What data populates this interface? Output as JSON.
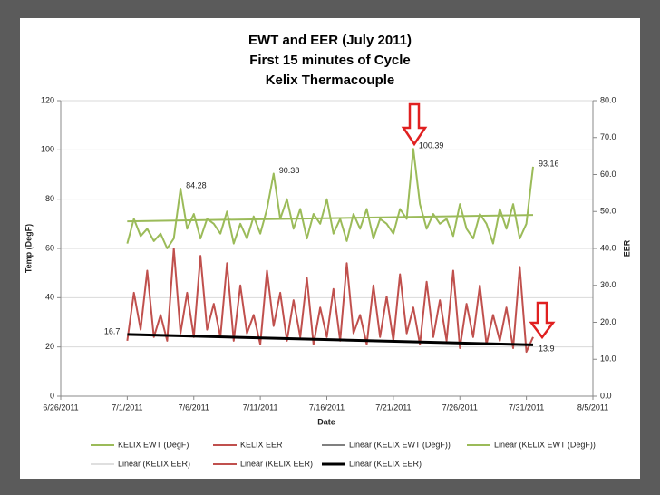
{
  "chart_data": {
    "type": "line",
    "title": [
      "EWT and EER (July 2011)",
      "First 15 minutes of Cycle",
      "Kelix Thermacouple"
    ],
    "xlabel": "Date",
    "ylabel": "Temp (DegF)",
    "y2label": "EER",
    "xlim": [
      "2011-06-26T00:00",
      "2011-08-05T00:00"
    ],
    "xticks": [
      {
        "value": "2011-06-26T00:00",
        "label": "6/26/2011"
      },
      {
        "value": "2011-07-01T00:00",
        "label": "7/1/2011"
      },
      {
        "value": "2011-07-06T00:00",
        "label": "7/6/2011"
      },
      {
        "value": "2011-07-11T00:00",
        "label": "7/11/2011"
      },
      {
        "value": "2011-07-16T00:00",
        "label": "7/16/2011"
      },
      {
        "value": "2011-07-21T00:00",
        "label": "7/21/2011"
      },
      {
        "value": "2011-07-26T00:00",
        "label": "7/26/2011"
      },
      {
        "value": "2011-07-31T00:00",
        "label": "7/31/2011"
      },
      {
        "value": "2011-08-05T00:00",
        "label": "8/5/2011"
      }
    ],
    "ylim": [
      0,
      120
    ],
    "yticks": [
      0,
      20,
      40,
      60,
      80,
      100,
      120
    ],
    "y2lim": [
      0,
      80
    ],
    "y2ticks": [
      {
        "value": 0,
        "label": "0.0"
      },
      {
        "value": 10,
        "label": "10.0"
      },
      {
        "value": 20,
        "label": "20.0"
      },
      {
        "value": 30,
        "label": "30.0"
      },
      {
        "value": 40,
        "label": "40.0"
      },
      {
        "value": 50,
        "label": "50.0"
      },
      {
        "value": 60,
        "label": "60.0"
      },
      {
        "value": 70,
        "label": "70.0"
      },
      {
        "value": 80,
        "label": "80.0"
      }
    ],
    "grid": true,
    "legend": "bottom",
    "x": [
      "2011-07-01T00:00",
      "2011-07-01T12:00",
      "2011-07-02T00:00",
      "2011-07-02T12:00",
      "2011-07-03T00:00",
      "2011-07-03T12:00",
      "2011-07-04T00:00",
      "2011-07-04T12:00",
      "2011-07-05T00:00",
      "2011-07-05T12:00",
      "2011-07-06T00:00",
      "2011-07-06T12:00",
      "2011-07-07T00:00",
      "2011-07-07T12:00",
      "2011-07-08T00:00",
      "2011-07-08T12:00",
      "2011-07-09T00:00",
      "2011-07-09T12:00",
      "2011-07-10T00:00",
      "2011-07-10T12:00",
      "2011-07-11T00:00",
      "2011-07-11T12:00",
      "2011-07-12T00:00",
      "2011-07-12T12:00",
      "2011-07-13T00:00",
      "2011-07-13T12:00",
      "2011-07-14T00:00",
      "2011-07-14T12:00",
      "2011-07-15T00:00",
      "2011-07-15T12:00",
      "2011-07-16T00:00",
      "2011-07-16T12:00",
      "2011-07-17T00:00",
      "2011-07-17T12:00",
      "2011-07-18T00:00",
      "2011-07-18T12:00",
      "2011-07-19T00:00",
      "2011-07-19T12:00",
      "2011-07-20T00:00",
      "2011-07-20T12:00",
      "2011-07-21T00:00",
      "2011-07-21T12:00",
      "2011-07-22T00:00",
      "2011-07-22T12:00",
      "2011-07-23T00:00",
      "2011-07-23T12:00",
      "2011-07-24T00:00",
      "2011-07-24T12:00",
      "2011-07-25T00:00",
      "2011-07-25T12:00",
      "2011-07-26T00:00",
      "2011-07-26T12:00",
      "2011-07-27T00:00",
      "2011-07-27T12:00",
      "2011-07-28T00:00",
      "2011-07-28T12:00",
      "2011-07-29T00:00",
      "2011-07-29T12:00",
      "2011-07-30T00:00",
      "2011-07-30T12:00",
      "2011-07-31T00:00",
      "2011-07-31T12:00"
    ],
    "series": [
      {
        "name": "KELIX EWT (DegF)",
        "color": "#9bbb59",
        "width": 2,
        "values": [
          62,
          72,
          65,
          68,
          63,
          66,
          60,
          64,
          84.28,
          68,
          74,
          64,
          72,
          70,
          66,
          75,
          62,
          70,
          64,
          73,
          66,
          76,
          90.38,
          72,
          80,
          68,
          76,
          64,
          74,
          70,
          80,
          66,
          72,
          63,
          74,
          68,
          76,
          64,
          72,
          70,
          66,
          76,
          72,
          100.39,
          78,
          68,
          74,
          70,
          72,
          65,
          78,
          68,
          64,
          74,
          70,
          62,
          76,
          68,
          78,
          64,
          70,
          93.16
        ],
        "value_labels": [
          null,
          null,
          null,
          null,
          null,
          null,
          null,
          null,
          "84.28",
          null,
          null,
          null,
          null,
          null,
          null,
          null,
          null,
          null,
          null,
          null,
          null,
          null,
          "90.38",
          null,
          null,
          null,
          null,
          null,
          null,
          null,
          null,
          null,
          null,
          null,
          null,
          null,
          null,
          null,
          null,
          null,
          null,
          null,
          null,
          "100.39",
          null,
          null,
          null,
          null,
          null,
          null,
          null,
          null,
          null,
          null,
          null,
          null,
          null,
          null,
          null,
          null,
          null,
          "93.16"
        ]
      },
      {
        "name": "KELIX EER",
        "color": "#c0504d",
        "width": 2,
        "axis": "y2",
        "values": [
          15,
          28,
          18,
          34,
          16,
          22,
          15,
          40,
          17,
          28,
          16,
          38,
          18,
          25,
          16,
          36,
          15,
          30,
          17,
          22,
          14,
          34,
          19,
          28,
          15,
          26,
          16,
          32,
          14,
          24,
          16,
          29,
          15,
          36,
          17,
          22,
          14,
          30,
          16,
          27,
          15,
          33,
          17,
          24,
          14,
          31,
          16,
          26,
          15,
          34,
          13,
          25,
          16,
          30,
          14,
          22,
          15,
          24,
          13,
          35,
          12,
          16
        ]
      },
      {
        "name": "Linear (KELIX EWT (DegF))",
        "color": "#000000",
        "width": 1,
        "x": [
          "2011-07-01T00:00",
          "2011-07-31T12:00"
        ],
        "values": [
          71,
          73.6
        ]
      },
      {
        "name": "Linear (KELIX EWT (DegF))",
        "color": "#9bbb59",
        "width": 2,
        "x": [
          "2011-07-01T00:00",
          "2011-07-31T12:00"
        ],
        "values": [
          71,
          73.6
        ]
      },
      {
        "name": "Linear (KELIX EER)",
        "color": "#bfbfbf",
        "width": 1,
        "axis": "y2",
        "x": [
          "2011-07-01T00:00",
          "2011-07-31T12:00"
        ],
        "values": [
          16.7,
          13.9
        ]
      },
      {
        "name": "Linear (KELIX EER)",
        "color": "#c0504d",
        "width": 2,
        "axis": "y2",
        "x": [
          "2011-07-01T00:00",
          "2011-07-31T12:00"
        ],
        "values": [
          16.7,
          13.9
        ]
      },
      {
        "name": "Linear (KELIX EER)",
        "color": "#000000",
        "width": 3,
        "axis": "y2",
        "x": [
          "2011-07-01T00:00",
          "2011-07-31T12:00"
        ],
        "values": [
          16.7,
          13.9
        ],
        "value_labels": [
          "16.7",
          "13.9"
        ]
      }
    ]
  }
}
